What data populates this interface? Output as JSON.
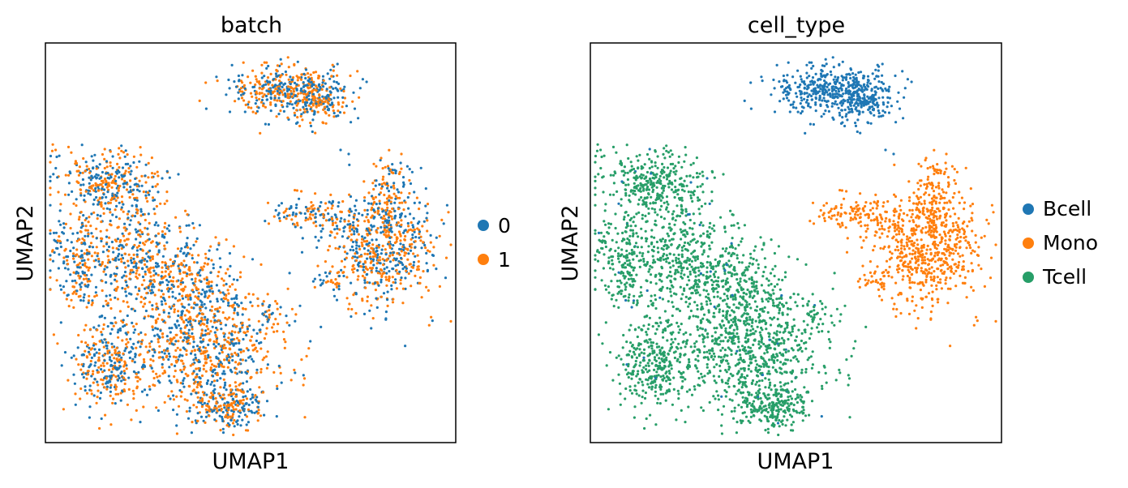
{
  "chart_data": [
    {
      "type": "scatter",
      "title": "batch",
      "xlabel": "UMAP1",
      "ylabel": "UMAP2",
      "legend_position": "right",
      "grid": false,
      "ticks": false,
      "series": [
        {
          "name": "0",
          "color": "#1f77b4"
        },
        {
          "name": "1",
          "color": "#ff7f0e"
        }
      ],
      "mixing": "batches intermixed across all clusters"
    },
    {
      "type": "scatter",
      "title": "cell_type",
      "xlabel": "UMAP1",
      "ylabel": "UMAP2",
      "legend_position": "right",
      "grid": false,
      "ticks": false,
      "series": [
        {
          "name": "Bcell",
          "color": "#1f77b4"
        },
        {
          "name": "Mono",
          "color": "#ff7f0e"
        },
        {
          "name": "Tcell",
          "color": "#279e68"
        }
      ]
    }
  ]
}
